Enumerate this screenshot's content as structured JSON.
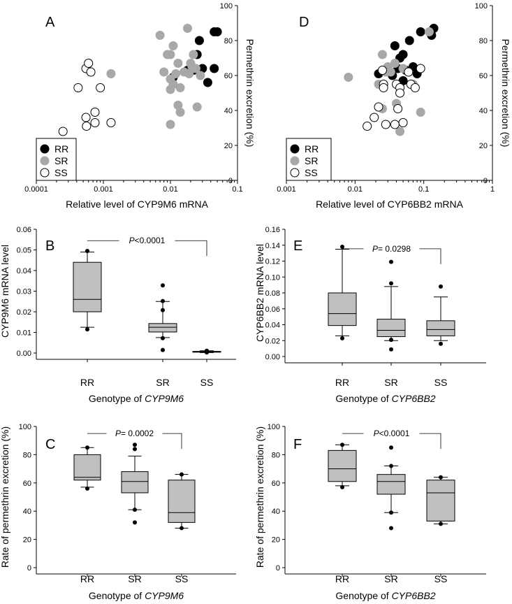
{
  "chart_data": [
    {
      "panel": "A",
      "type": "scatter",
      "x_scale": "log",
      "xlabel": "Relative level of CYP9M6 mRNA",
      "ylabel": "Permethrin excretion (%)",
      "xlim": [
        0.0001,
        0.1
      ],
      "ylim": [
        0,
        100
      ],
      "x_ticks": [
        "0.0001",
        "0.001",
        "0.01",
        "0.1"
      ],
      "y_ticks": [
        "0",
        "20",
        "40",
        "60",
        "80",
        "100"
      ],
      "legend": [
        {
          "label": "RR",
          "color": "#000000",
          "fill": "#000000"
        },
        {
          "label": "SR",
          "color": "#a8a8a8",
          "fill": "#a8a8a8"
        },
        {
          "label": "SS",
          "color": "#000000",
          "fill": "#ffffff"
        }
      ],
      "series": [
        {
          "name": "RR",
          "points": [
            [
              0.011,
              59
            ],
            [
              0.018,
              63
            ],
            [
              0.022,
              63
            ],
            [
              0.025,
              72
            ],
            [
              0.027,
              80
            ],
            [
              0.03,
              64
            ],
            [
              0.036,
              56
            ],
            [
              0.045,
              85
            ],
            [
              0.05,
              85
            ],
            [
              0.045,
              64
            ]
          ]
        },
        {
          "name": "SR",
          "points": [
            [
              0.007,
              83
            ],
            [
              0.008,
              62
            ],
            [
              0.009,
              72
            ],
            [
              0.01,
              72
            ],
            [
              0.011,
              77
            ],
            [
              0.012,
              61
            ],
            [
              0.01,
              58
            ],
            [
              0.011,
              55
            ],
            [
              0.01,
              52
            ],
            [
              0.013,
              67
            ],
            [
              0.014,
              53
            ],
            [
              0.013,
              43
            ],
            [
              0.014,
              39
            ],
            [
              0.016,
              62
            ],
            [
              0.018,
              87
            ],
            [
              0.019,
              61
            ],
            [
              0.02,
              67
            ],
            [
              0.022,
              72
            ],
            [
              0.021,
              65
            ],
            [
              0.024,
              64
            ],
            [
              0.025,
              42
            ],
            [
              0.028,
              60
            ],
            [
              0.01,
              32
            ],
            [
              0.0013,
              61
            ]
          ]
        },
        {
          "name": "SS",
          "points": [
            [
              0.00025,
              28
            ],
            [
              0.00042,
              53
            ],
            [
              0.00055,
              64
            ],
            [
              0.0006,
              67
            ],
            [
              0.00065,
              62
            ],
            [
              0.00055,
              36
            ],
            [
              0.00056,
              31
            ],
            [
              0.00075,
              39
            ],
            [
              0.00075,
              33
            ],
            [
              0.0009,
              53
            ],
            [
              0.0013,
              33
            ]
          ]
        }
      ]
    },
    {
      "panel": "D",
      "type": "scatter",
      "x_scale": "log",
      "xlabel": "Relative level of CYP6BB2 mRNA",
      "ylabel": "Permethrin excretion (%)",
      "xlim": [
        0.001,
        1
      ],
      "ylim": [
        0,
        100
      ],
      "x_ticks": [
        "0.001",
        "0.01",
        "0.1",
        "1"
      ],
      "y_ticks": [
        "0",
        "20",
        "40",
        "60",
        "80",
        "100"
      ],
      "legend": [
        {
          "label": "RR",
          "color": "#000000",
          "fill": "#000000"
        },
        {
          "label": "SR",
          "color": "#a8a8a8",
          "fill": "#a8a8a8"
        },
        {
          "label": "SS",
          "color": "#000000",
          "fill": "#ffffff"
        }
      ],
      "series": [
        {
          "name": "RR",
          "points": [
            [
              0.022,
              61
            ],
            [
              0.03,
              63
            ],
            [
              0.035,
              60
            ],
            [
              0.038,
              77
            ],
            [
              0.042,
              64
            ],
            [
              0.045,
              70
            ],
            [
              0.05,
              72
            ],
            [
              0.05,
              57
            ],
            [
              0.055,
              63
            ],
            [
              0.062,
              80
            ],
            [
              0.07,
              65
            ],
            [
              0.08,
              61
            ],
            [
              0.09,
              85
            ],
            [
              0.13,
              83
            ],
            [
              0.14,
              87
            ]
          ]
        },
        {
          "name": "SR",
          "points": [
            [
              0.008,
              59
            ],
            [
              0.022,
              55
            ],
            [
              0.025,
              72
            ],
            [
              0.025,
              41
            ],
            [
              0.028,
              62
            ],
            [
              0.03,
              65
            ],
            [
              0.033,
              62
            ],
            [
              0.038,
              67
            ],
            [
              0.04,
              44
            ],
            [
              0.045,
              28
            ],
            [
              0.05,
              64
            ],
            [
              0.06,
              62
            ],
            [
              0.07,
              55
            ],
            [
              0.09,
              39
            ],
            [
              0.12,
              85
            ]
          ]
        },
        {
          "name": "SS",
          "points": [
            [
              0.015,
              31
            ],
            [
              0.019,
              36
            ],
            [
              0.022,
              42
            ],
            [
              0.025,
              63
            ],
            [
              0.026,
              55
            ],
            [
              0.026,
              53
            ],
            [
              0.028,
              32
            ],
            [
              0.038,
              32
            ],
            [
              0.04,
              55
            ],
            [
              0.042,
              41
            ],
            [
              0.045,
              53
            ],
            [
              0.045,
              50
            ],
            [
              0.05,
              33
            ],
            [
              0.06,
              62
            ],
            [
              0.065,
              55
            ],
            [
              0.075,
              53
            ],
            [
              0.09,
              64
            ]
          ]
        }
      ]
    },
    {
      "panel": "B",
      "type": "box",
      "ylabel": "CYP9M6 mRNA level",
      "xlabel_prefix": "Genotype of ",
      "xlabel_gene": "CYP9M6",
      "ylim": [
        0,
        0.06
      ],
      "y_ticks": [
        "0.00",
        "0.01",
        "0.02",
        "0.03",
        "0.04",
        "0.05",
        "0.06"
      ],
      "categories": [
        "RR",
        "SR",
        "SS"
      ],
      "boxes": [
        {
          "q1": 0.02,
          "median": 0.026,
          "q3": 0.044,
          "whisker_low": 0.0125,
          "whisker_high": 0.049,
          "outliers": [
            0.0115,
            0.0495
          ]
        },
        {
          "q1": 0.0102,
          "median": 0.0125,
          "q3": 0.0143,
          "whisker_low": 0.0075,
          "whisker_high": 0.025,
          "outliers": [
            0.0015,
            0.0072,
            0.0208,
            0.0252,
            0.0328
          ]
        },
        {
          "q1": 0.0004,
          "median": 0.0006,
          "q3": 0.0008,
          "whisker_low": 0.0002,
          "whisker_high": 0.0011,
          "outliers": [
            0.0003,
            0.0011
          ]
        }
      ],
      "significance": {
        "p_label": "P",
        "p_text": "<0.0001",
        "y": 0.0545
      }
    },
    {
      "panel": "E",
      "type": "box",
      "ylabel": "CYP6BB2 mRNA level",
      "xlabel_prefix": "Genotype of ",
      "xlabel_gene": "CYP6BB2",
      "ylim": [
        0,
        0.16
      ],
      "y_ticks": [
        "0.00",
        "0.02",
        "0.04",
        "0.06",
        "0.08",
        "0.10",
        "0.12",
        "0.14",
        "0.16"
      ],
      "categories": [
        "RR",
        "SR",
        "SS"
      ],
      "boxes": [
        {
          "q1": 0.039,
          "median": 0.054,
          "q3": 0.08,
          "whisker_low": 0.026,
          "whisker_high": 0.135,
          "outliers": [
            0.023,
            0.138
          ]
        },
        {
          "q1": 0.025,
          "median": 0.033,
          "q3": 0.047,
          "whisker_low": 0.02,
          "whisker_high": 0.088,
          "outliers": [
            0.009,
            0.021,
            0.092,
            0.119
          ]
        },
        {
          "q1": 0.026,
          "median": 0.034,
          "q3": 0.045,
          "whisker_low": 0.02,
          "whisker_high": 0.075,
          "outliers": [
            0.016,
            0.088
          ]
        }
      ],
      "significance": {
        "p_label": "P",
        "p_text": "=  0.0298",
        "y": 0.1355
      }
    },
    {
      "panel": "C",
      "type": "box",
      "ylabel": "Rate of permethrin excretion (%)",
      "xlabel_prefix": "Genotype of ",
      "xlabel_gene": "CYP9M6",
      "ylim": [
        0,
        100
      ],
      "y_ticks": [
        "0",
        "20",
        "40",
        "60",
        "80",
        "100"
      ],
      "categories": [
        "RR",
        "SR",
        "SS"
      ],
      "boxes": [
        {
          "q1": 62,
          "median": 64,
          "q3": 80,
          "whisker_low": 57,
          "whisker_high": 85,
          "outliers": [
            56,
            85
          ]
        },
        {
          "q1": 53,
          "median": 61,
          "q3": 68,
          "whisker_low": 41,
          "whisker_high": 79,
          "outliers": [
            32,
            41,
            84,
            87
          ]
        },
        {
          "q1": 32,
          "median": 39,
          "q3": 62,
          "whisker_low": 28,
          "whisker_high": 66,
          "outliers": [
            28,
            66
          ]
        }
      ],
      "significance": {
        "p_label": "P",
        "p_text": "=  0.0002",
        "y": 95
      }
    },
    {
      "panel": "F",
      "type": "box",
      "ylabel": "Rate of permethrin excretion (%)",
      "xlabel_prefix": "Genotype of ",
      "xlabel_gene": "CYP6BB2",
      "ylim": [
        0,
        100
      ],
      "y_ticks": [
        "0",
        "20",
        "40",
        "60",
        "80",
        "100"
      ],
      "categories": [
        "RR",
        "SR",
        "SS"
      ],
      "boxes": [
        {
          "q1": 61,
          "median": 70,
          "q3": 83,
          "whisker_low": 58,
          "whisker_high": 87,
          "outliers": [
            57,
            87
          ]
        },
        {
          "q1": 52,
          "median": 61,
          "q3": 66,
          "whisker_low": 39,
          "whisker_high": 72,
          "outliers": [
            28,
            39,
            72,
            85
          ]
        },
        {
          "q1": 33,
          "median": 53,
          "q3": 62,
          "whisker_low": 31,
          "whisker_high": 64,
          "outliers": [
            31,
            64
          ]
        }
      ],
      "significance": {
        "p_label": "P",
        "p_text": "<0.0001",
        "y": 95
      }
    }
  ]
}
